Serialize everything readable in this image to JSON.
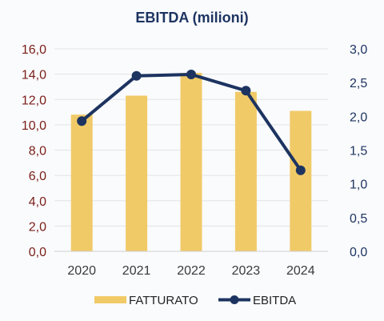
{
  "chart_data": {
    "type": "bar+line",
    "title": "EBITDA (milioni)",
    "categories": [
      "2020",
      "2021",
      "2022",
      "2023",
      "2024"
    ],
    "series": [
      {
        "name": "FATTURATO",
        "type": "bar",
        "axis": "left",
        "color": "#f1ca68",
        "values": [
          10.8,
          12.3,
          14.1,
          12.6,
          11.1
        ]
      },
      {
        "name": "EBITDA",
        "type": "line",
        "axis": "right",
        "color": "#1d3461",
        "values": [
          1.93,
          2.6,
          2.62,
          2.38,
          1.2
        ]
      }
    ],
    "y_left": {
      "ylim": [
        0,
        16
      ],
      "ticks": [
        "0,0",
        "2,0",
        "4,0",
        "6,0",
        "8,0",
        "10,0",
        "12,0",
        "14,0",
        "16,0"
      ],
      "color": "#7a1e18"
    },
    "y_right": {
      "ylim": [
        0,
        3
      ],
      "ticks": [
        "0,0",
        "0,5",
        "1,0",
        "1,5",
        "2,0",
        "2,5",
        "3,0"
      ],
      "color": "#1d3461"
    },
    "grid": true,
    "legend": "bottom"
  }
}
